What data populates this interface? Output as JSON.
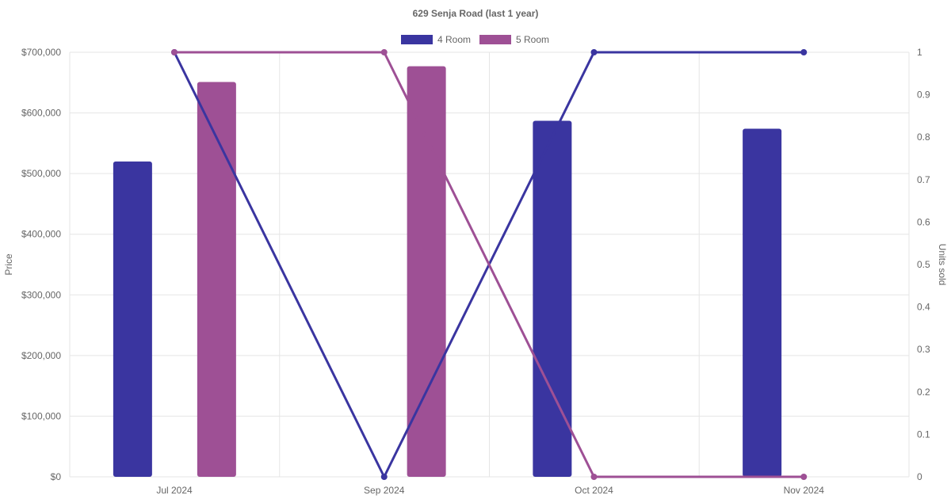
{
  "chart_data": {
    "type": "bar",
    "title": "629 Senja Road (last 1 year)",
    "categories": [
      "Jul 2024",
      "Sep 2024",
      "Oct 2024",
      "Nov 2024"
    ],
    "y_left": {
      "label": "Price",
      "ylim": [
        0,
        700000
      ],
      "ticks": [
        0,
        100000,
        200000,
        300000,
        400000,
        500000,
        600000,
        700000
      ],
      "tick_labels": [
        "$0",
        "$100,000",
        "$200,000",
        "$300,000",
        "$400,000",
        "$500,000",
        "$600,000",
        "$700,000"
      ]
    },
    "y_right": {
      "label": "Units sold",
      "ylim": [
        0,
        1
      ],
      "ticks": [
        0,
        0.1,
        0.2,
        0.3,
        0.4,
        0.5,
        0.6,
        0.7,
        0.8,
        0.9,
        1
      ],
      "tick_labels": [
        "0",
        "0.1",
        "0.2",
        "0.3",
        "0.4",
        "0.5",
        "0.6",
        "0.7",
        "0.8",
        "0.9",
        "1"
      ]
    },
    "series": [
      {
        "name": "4 Room",
        "color": "#3a35a0",
        "price": [
          520000,
          null,
          587000,
          574000
        ],
        "units_sold": [
          1,
          0,
          1,
          1
        ]
      },
      {
        "name": "5 Room",
        "color": "#9e5095",
        "price": [
          651000,
          677000,
          null,
          null
        ],
        "units_sold": [
          1,
          1,
          0,
          0
        ]
      }
    ],
    "legend": "top-center",
    "grid": true
  }
}
